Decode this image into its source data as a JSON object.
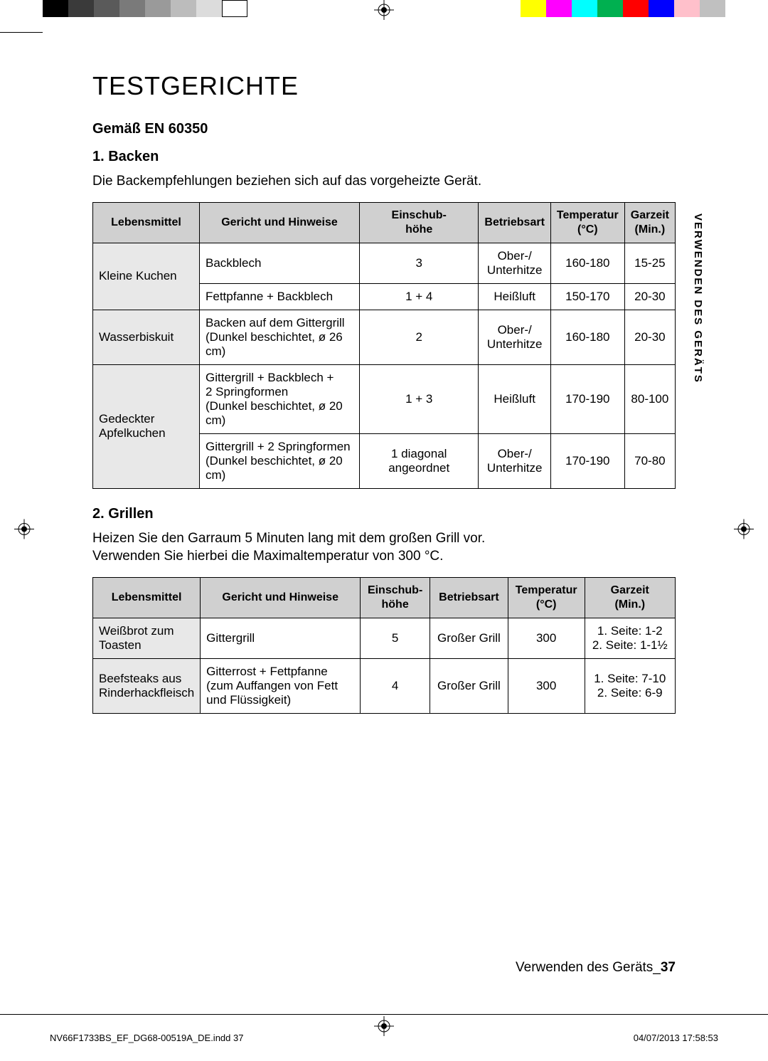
{
  "colorBar": {
    "left": [
      "#000000",
      "#3a3a3a",
      "#5a5a5a",
      "#7a7a7a",
      "#9a9a9a",
      "#bcbcbc",
      "#dcdcdc",
      "#ffffff"
    ],
    "right": [
      "#ffff00",
      "#ff00ff",
      "#00ffff",
      "#00b050",
      "#ff0000",
      "#0000ff",
      "#ffc0cb",
      "#c0c0c0"
    ],
    "swatchWidth": 36
  },
  "cropLine": {
    "color": "#000000"
  },
  "title": "TESTGERICHTE",
  "standard": "Gemäß EN 60350",
  "section1": {
    "heading": "1. Backen",
    "intro": "Die Backempfehlungen beziehen sich auf das vorgeheizte Gerät.",
    "headers": {
      "food": "Lebensmittel",
      "dish": "Gericht und Hinweise",
      "level": "Einschub-\nhöhe",
      "mode": "Betriebsart",
      "temp": "Temperatur\n(°C)",
      "time": "Garzeit\n(Min.)"
    },
    "rows": [
      {
        "food": "Kleine Kuchen",
        "dish": "Backblech",
        "level": "3",
        "mode": "Ober-/\nUnterhitze",
        "temp": "160-180",
        "time": "15-25",
        "foodRowspan": 2
      },
      {
        "food": null,
        "dish": "Fettpfanne + Backblech",
        "level": "1 + 4",
        "mode": "Heißluft",
        "temp": "150-170",
        "time": "20-30"
      },
      {
        "food": "Wasserbiskuit",
        "dish": "Backen auf dem Gittergrill\n(Dunkel beschichtet, ø 26 cm)",
        "level": "2",
        "mode": "Ober-/\nUnterhitze",
        "temp": "160-180",
        "time": "20-30",
        "foodRowspan": 1
      },
      {
        "food": "Gedeckter Apfelkuchen",
        "dish": "Gittergrill + Backblech +\n2 Springformen\n(Dunkel beschichtet, ø 20 cm)",
        "level": "1 + 3",
        "mode": "Heißluft",
        "temp": "170-190",
        "time": "80-100",
        "foodRowspan": 2
      },
      {
        "food": null,
        "dish": "Gittergrill + 2 Springformen\n(Dunkel beschichtet, ø 20 cm)",
        "level": "1 diagonal angeordnet",
        "mode": "Ober-/\nUnterhitze",
        "temp": "170-190",
        "time": "70-80"
      }
    ]
  },
  "section2": {
    "heading": "2. Grillen",
    "intro": "Heizen Sie den Garraum 5 Minuten lang mit dem großen Grill vor.\nVerwenden Sie hierbei die Maximaltemperatur von 300 °C.",
    "headers": {
      "food": "Lebensmittel",
      "dish": "Gericht und Hinweise",
      "level": "Einschub-\nhöhe",
      "mode": "Betriebsart",
      "temp": "Temperatur\n(°C)",
      "time": "Garzeit\n(Min.)"
    },
    "rows": [
      {
        "food": "Weißbrot zum Toasten",
        "dish": "Gittergrill",
        "level": "5",
        "mode": "Großer Grill",
        "temp": "300",
        "time": "1. Seite: 1-2\n2. Seite: 1-1½"
      },
      {
        "food": "Beefsteaks aus Rinderhackfleisch",
        "dish": "Gitterrost + Fettpfanne\n(zum Auffangen von Fett und Flüssigkeit)",
        "level": "4",
        "mode": "Großer Grill",
        "temp": "300",
        "time": "1. Seite: 7-10\n2. Seite: 6-9"
      }
    ]
  },
  "sideTab": "VERWENDEN DES GERÄTS",
  "footer": {
    "pageLabel": "Verwenden des Geräts_",
    "pageNum": "37",
    "file": "NV66F1733BS_EF_DG68-00519A_DE.indd   37",
    "timestamp": "04/07/2013   17:58:53"
  }
}
